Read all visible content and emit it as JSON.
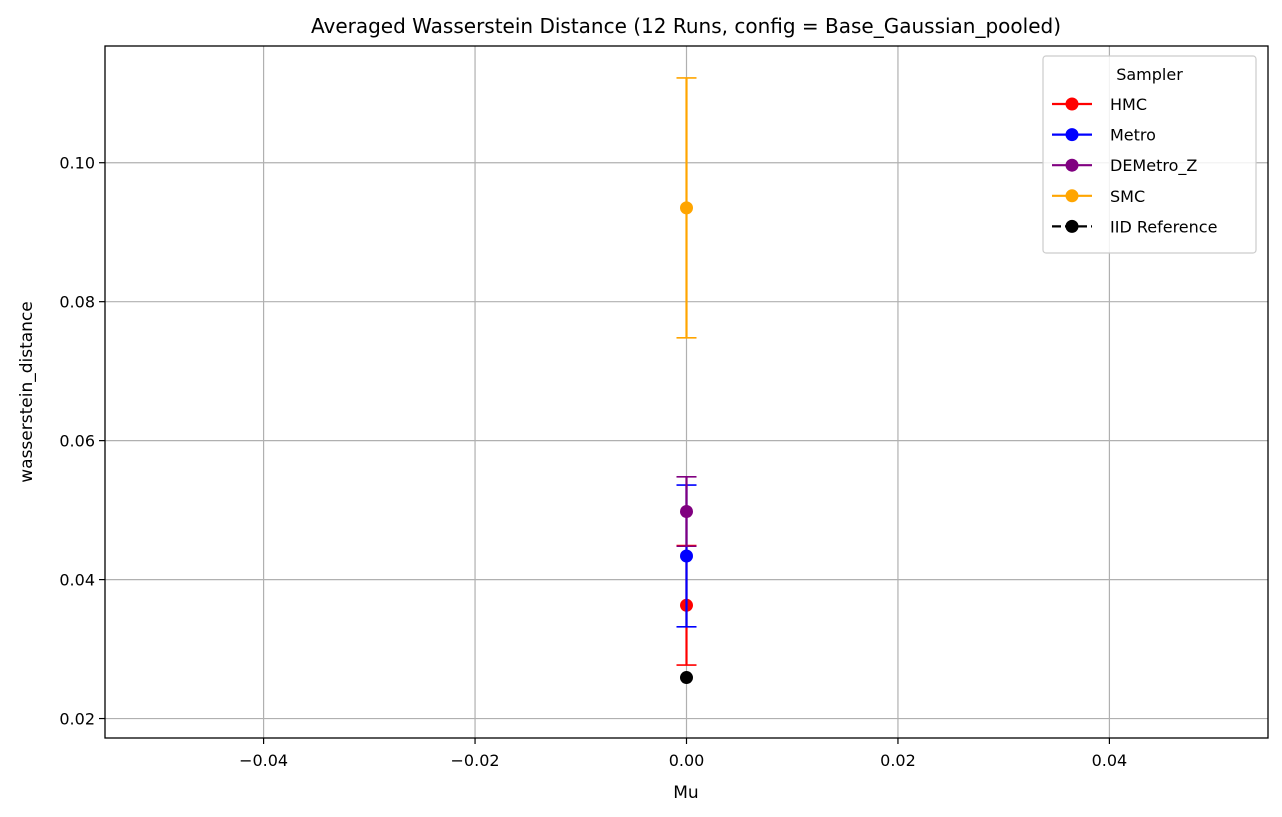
{
  "chart_data": {
    "type": "scatter",
    "title": "Averaged Wasserstein Distance (12 Runs, config = Base_Gaussian_pooled)",
    "xlabel": "Mu",
    "ylabel": "wasserstein_distance",
    "xlim": [
      -0.055,
      0.055
    ],
    "ylim": [
      0.0172,
      0.1168
    ],
    "xticks": [
      -0.04,
      -0.02,
      0.0,
      0.02,
      0.04
    ],
    "xtick_labels": [
      "−0.04",
      "−0.02",
      "0.00",
      "0.02",
      "0.04"
    ],
    "yticks": [
      0.02,
      0.04,
      0.06,
      0.08,
      0.1
    ],
    "ytick_labels": [
      "0.02",
      "0.04",
      "0.06",
      "0.08",
      "0.10"
    ],
    "grid": true,
    "legend": {
      "title": "Sampler",
      "position": "top-right"
    },
    "series": [
      {
        "name": "HMC",
        "color": "#ff0000",
        "line": "solid",
        "x": [
          0.0
        ],
        "y": [
          0.0363
        ],
        "yerr": [
          0.0086
        ]
      },
      {
        "name": "Metro",
        "color": "#0000ff",
        "line": "solid",
        "x": [
          0.0
        ],
        "y": [
          0.0434
        ],
        "yerr": [
          0.0102
        ]
      },
      {
        "name": "DEMetro_Z",
        "color": "#800080",
        "line": "solid",
        "x": [
          0.0
        ],
        "y": [
          0.0498
        ],
        "yerr": [
          0.005
        ]
      },
      {
        "name": "SMC",
        "color": "#ffa500",
        "line": "solid",
        "x": [
          0.0
        ],
        "y": [
          0.0935
        ],
        "yerr": [
          0.0187
        ]
      },
      {
        "name": "IID Reference",
        "color": "#000000",
        "line": "dashed",
        "x": [
          0.0
        ],
        "y": [
          0.0259
        ],
        "yerr": [
          0
        ]
      }
    ]
  }
}
